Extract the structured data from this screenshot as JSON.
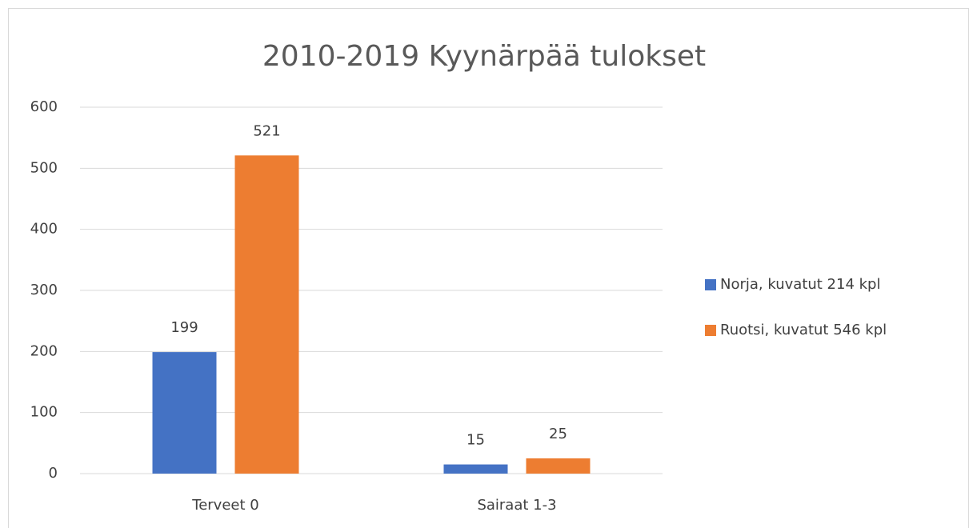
{
  "chart_data": {
    "type": "bar",
    "title": "2010-2019 Kyynärpää tulokset",
    "categories": [
      "Terveet 0",
      "Sairaat 1-3"
    ],
    "series": [
      {
        "name": "Norja, kuvatut 214 kpl",
        "color": "#4472c4",
        "values": [
          199,
          15
        ]
      },
      {
        "name": "Ruotsi, kuvatut 546 kpl",
        "color": "#ed7d31",
        "values": [
          521,
          25
        ]
      }
    ],
    "ylim": [
      0,
      600
    ],
    "yticks": [
      0,
      100,
      200,
      300,
      400,
      500,
      600
    ],
    "grid": true,
    "legend": "right"
  }
}
